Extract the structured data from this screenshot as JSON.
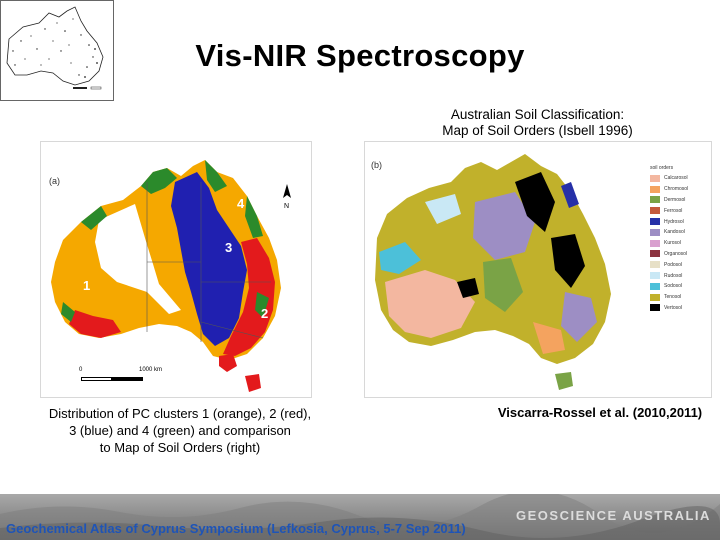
{
  "slide": {
    "title": "Vis-NIR Spectroscopy"
  },
  "right_panel": {
    "caption_line1": "Australian Soil Classification:",
    "caption_line2": "Map of Soil Orders (Isbell 1996)",
    "label": "(b)",
    "legend_title": "soil orders",
    "legend": [
      {
        "label": "Calcarosol",
        "color": "#f3b7a0"
      },
      {
        "label": "Chromosol",
        "color": "#f4a35f"
      },
      {
        "label": "Dermosol",
        "color": "#7aa346"
      },
      {
        "label": "Ferrosol",
        "color": "#c45a3c"
      },
      {
        "label": "Hydrosol",
        "color": "#2630a8"
      },
      {
        "label": "Kandosol",
        "color": "#9d8ec4"
      },
      {
        "label": "Kurosol",
        "color": "#d9a0cf"
      },
      {
        "label": "Organosol",
        "color": "#8c3340"
      },
      {
        "label": "Podosol",
        "color": "#e7e0c7"
      },
      {
        "label": "Rudosol",
        "color": "#c9e8f5"
      },
      {
        "label": "Sodosol",
        "color": "#4cc0d9"
      },
      {
        "label": "Tenosol",
        "color": "#c1b12b"
      },
      {
        "label": "Vertosol",
        "color": "#000000"
      }
    ]
  },
  "left_panel": {
    "label": "(a)",
    "clusters": [
      "4",
      "3",
      "1",
      "2"
    ],
    "scale_zero": "0",
    "scale_max": "1000 km",
    "caption_line1": "Distribution of PC clusters 1 (orange), 2 (red),",
    "caption_line2": "3 (blue) and 4 (green) and comparison",
    "caption_line3": "to Map of Soil Orders (right)"
  },
  "citation": "Viscarra-Rossel et al. (2010,2011)",
  "footer": {
    "event": "Geochemical Atlas of Cyprus Symposium (Lefkosia, Cyprus, 5-7 Sep 2011)",
    "logo": "GEOSCIENCE AUSTRALIA"
  },
  "colors": {
    "cluster1_orange": "#f5a800",
    "cluster2_red": "#e31a1c",
    "cluster3_blue": "#2020b0",
    "cluster4_green": "#2b8a2b",
    "footer_text": "#1e54b7"
  }
}
